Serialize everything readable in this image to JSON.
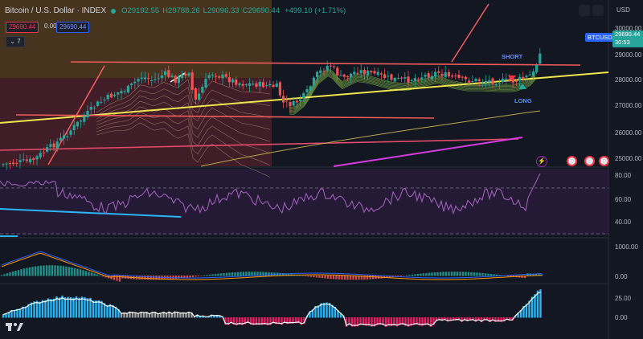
{
  "header": {
    "symbol_title": "Bitcoin / U.S. Dollar · INDEX",
    "open": "O29192.55",
    "high": "H29788.26",
    "low": "L29096.33",
    "close": "C29690.44",
    "change": "+499.10 (+1.71%)"
  },
  "quote": {
    "bid": "29690.44",
    "spread": "0.00",
    "ask": "29690.44"
  },
  "indicator_collapse": "7",
  "price_axis": {
    "currency": "USD",
    "ticks": [
      "30000.00",
      "29000.00",
      "28000.00",
      "27000.00",
      "26000.00",
      "25000.00"
    ],
    "symbol_tag": "BTCUSD",
    "last_price": "29690.44",
    "countdown": "30:53"
  },
  "rsi_axis": {
    "ticks": [
      "80.00",
      "60.00",
      "40.00"
    ]
  },
  "macd_axis": {
    "ticks": [
      "1000.00",
      "0.00"
    ]
  },
  "momentum_axis": {
    "ticks": [
      "25.00",
      "0.00"
    ]
  },
  "signals": {
    "short_label": "SHORT",
    "long_label": "LONG"
  },
  "colors": {
    "background": "#131722",
    "up": "#26a69a",
    "down": "#ef5350",
    "trendline_yellow": "#f0e64c",
    "resistance_red": "#f05a5a",
    "rsi_purple": "#9c5fb5",
    "magenta": "#d63bdf",
    "short_red": "#f23645",
    "long_green": "#26a69a"
  },
  "icons": [
    "eye-icon",
    "settings-icon",
    "lightning-icon",
    "flag-us-icon",
    "tradingview-logo-icon"
  ]
}
